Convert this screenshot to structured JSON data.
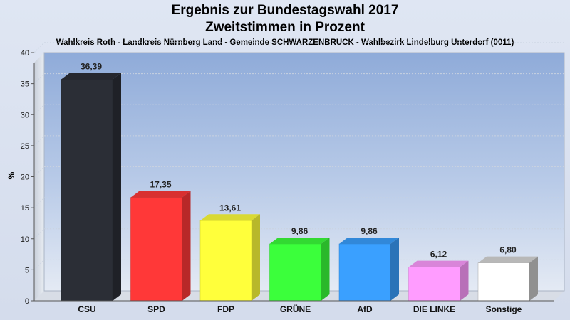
{
  "chart_data": {
    "type": "bar",
    "title": "Ergebnis zur Bundestagswahl 2017",
    "title2": "Zweitstimmen in Prozent",
    "subtitle": "Wahlkreis Roth - Landkreis Nürnberg Land - Gemeinde SCHWARZENBRUCK - Wahlbezirk Lindelburg Unterdorf (0011)",
    "ylabel": "%",
    "ylim": [
      0,
      40
    ],
    "yticks": [
      0,
      5,
      10,
      15,
      20,
      25,
      30,
      35,
      40
    ],
    "categories": [
      "CSU",
      "SPD",
      "FDP",
      "GRÜNE",
      "AfD",
      "DIE LINKE",
      "Sonstige"
    ],
    "values": [
      36.39,
      17.35,
      13.61,
      9.86,
      9.86,
      6.12,
      6.8
    ],
    "value_labels": [
      "36,39",
      "17,35",
      "13,61",
      "9,86",
      "9,86",
      "6,12",
      "6,80"
    ],
    "colors": [
      "#2b2e36",
      "#ff3838",
      "#ffff3b",
      "#3bff3b",
      "#3aa0ff",
      "#ff9cff",
      "#ffffff"
    ],
    "grid": true,
    "legend": "none"
  }
}
